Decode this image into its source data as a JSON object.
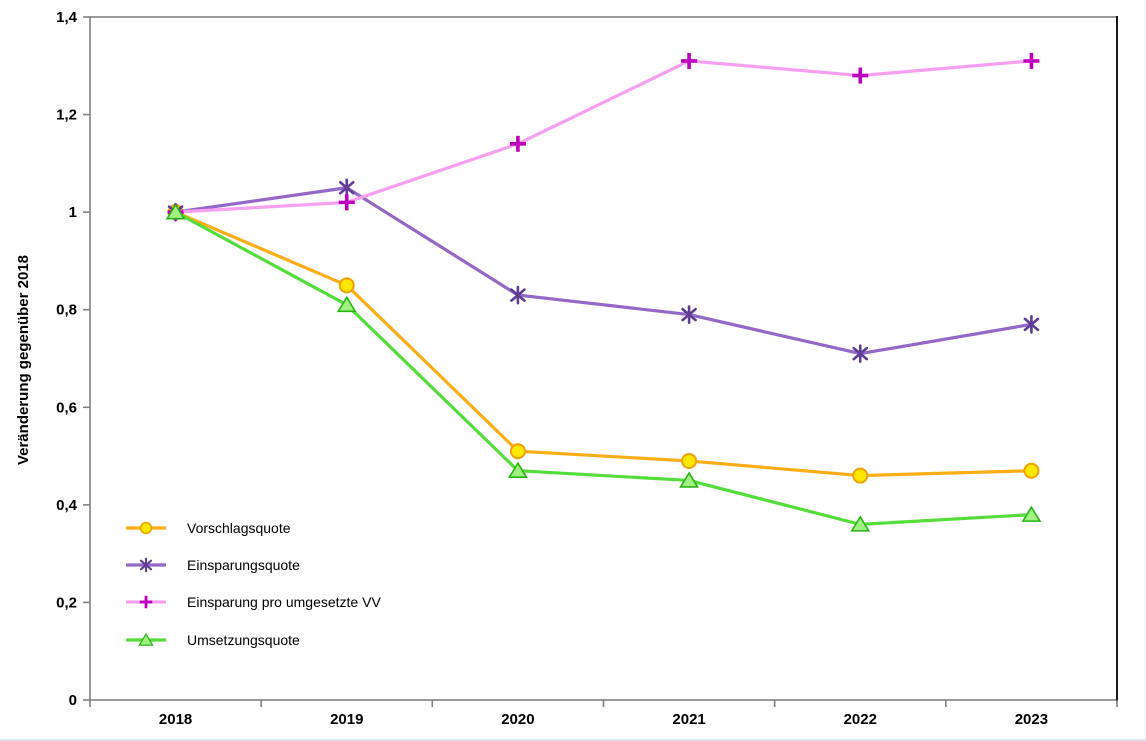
{
  "window": {
    "background": "#FFFFFF",
    "outer_border_color": "#DBE5F1"
  },
  "chart_data": {
    "type": "line",
    "title": "",
    "xlabel": "",
    "ylabel": "Veränderung gegenüber 2018",
    "ylim": [
      0,
      1.4
    ],
    "grid": "off",
    "legend_position": "inside-bottom-left",
    "axis_color": "#808080",
    "axis_right_color": "#1A1A1A",
    "text_color": "#000000",
    "decimal_style": "comma",
    "y_ticks": [
      {
        "value": 0,
        "label": "0"
      },
      {
        "value": 0.2,
        "label": "0,2"
      },
      {
        "value": 0.4,
        "label": "0,4"
      },
      {
        "value": 0.6,
        "label": "0,6"
      },
      {
        "value": 0.8,
        "label": "0,8"
      },
      {
        "value": 1.0,
        "label": "1"
      },
      {
        "value": 1.2,
        "label": "1,2"
      },
      {
        "value": 1.4,
        "label": "1,4"
      }
    ],
    "categories": [
      "2018",
      "2019",
      "2020",
      "2021",
      "2022",
      "2023"
    ],
    "series": [
      {
        "name": "Vorschlagsquote",
        "marker": "circle",
        "line_color": "#FBAE17",
        "marker_fill": "#FFE800",
        "marker_stroke": "#F1A106",
        "values": [
          1.0,
          0.85,
          0.51,
          0.49,
          0.46,
          0.47
        ]
      },
      {
        "name": "Einsparungsquote",
        "marker": "star",
        "line_color": "#9468C6",
        "marker_color": "#5F3C96",
        "values": [
          1.0,
          1.05,
          0.83,
          0.79,
          0.71,
          0.77
        ]
      },
      {
        "name": "Einsparung pro umgesetzte VV",
        "marker": "plus",
        "line_color": "#F7A0F0",
        "marker_color": "#BE00BE",
        "values": [
          1.0,
          1.02,
          1.14,
          1.31,
          1.28,
          1.31
        ]
      },
      {
        "name": "Umsetzungsquote",
        "marker": "triangle",
        "line_color": "#55DD3C",
        "marker_fill": "#A0F082",
        "marker_stroke": "#28B414",
        "values": [
          1.0,
          0.81,
          0.47,
          0.45,
          0.36,
          0.38
        ]
      }
    ]
  }
}
